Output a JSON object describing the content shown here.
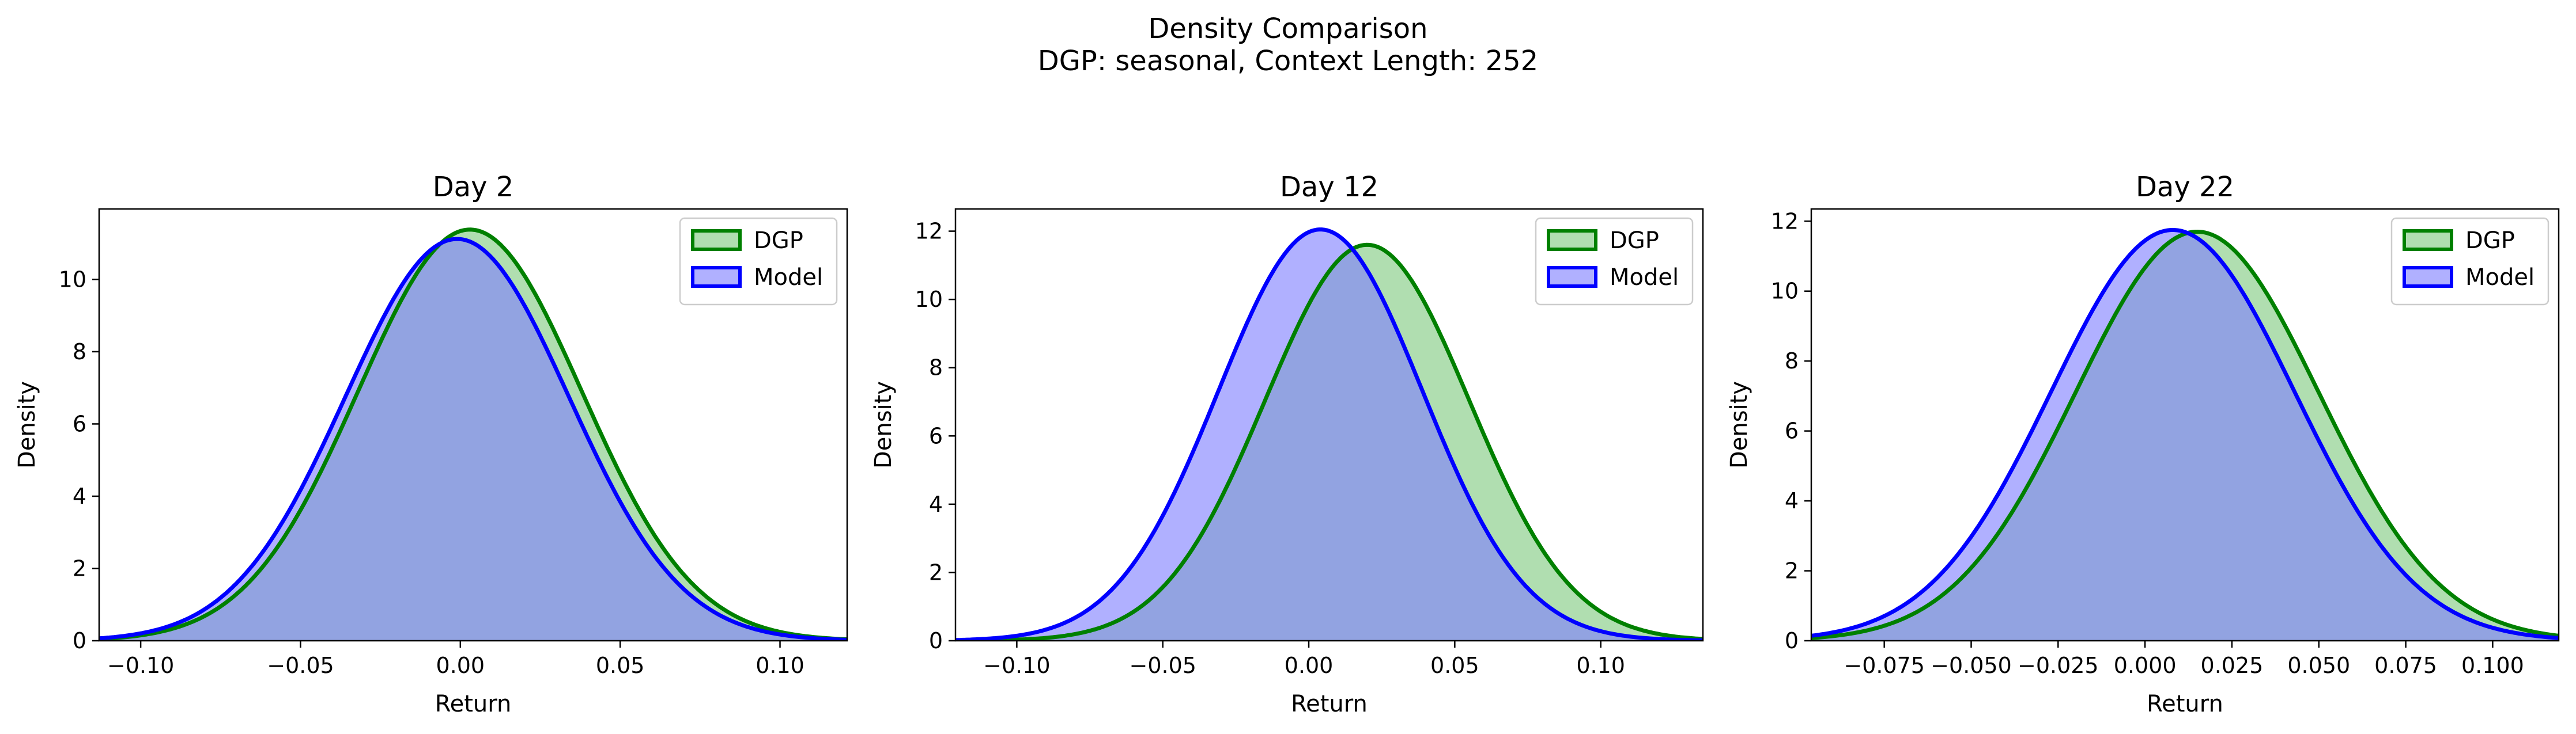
{
  "figure": {
    "title": "Density Comparison",
    "subtitle": "DGP: seasonal, Context Length: 252"
  },
  "colors": {
    "dgp_line": "#008000",
    "dgp_fill": "#7fc97f",
    "model_line": "#0000ff",
    "model_fill": "#7f7fff"
  },
  "chart_data": [
    {
      "type": "area",
      "title": "Day 2",
      "xlabel": "Return",
      "ylabel": "Density",
      "xlim": [
        -0.113,
        0.121
      ],
      "ylim": [
        0,
        11.95
      ],
      "xticks": [
        -0.1,
        -0.05,
        0.0,
        0.05,
        0.1
      ],
      "xtick_labels": [
        "−0.10",
        "−0.05",
        "0.00",
        "0.05",
        "0.10"
      ],
      "yticks": [
        0,
        2,
        4,
        6,
        8,
        10
      ],
      "legend": "top-right",
      "series": [
        {
          "name": "DGP",
          "kind": "normal",
          "mean": 0.003,
          "peak": 11.38
        },
        {
          "name": "Model",
          "kind": "normal",
          "mean": -0.001,
          "peak": 11.12,
          "tail_floor": 0.2
        }
      ]
    },
    {
      "type": "area",
      "title": "Day 12",
      "xlabel": "Return",
      "ylabel": "Density",
      "xlim": [
        -0.121,
        0.135
      ],
      "ylim": [
        0,
        12.65
      ],
      "xticks": [
        -0.1,
        -0.05,
        0.0,
        0.05,
        0.1
      ],
      "xtick_labels": [
        "−0.10",
        "−0.05",
        "0.00",
        "0.05",
        "0.10"
      ],
      "yticks": [
        0,
        2,
        4,
        6,
        8,
        10,
        12
      ],
      "legend": "top-right",
      "series": [
        {
          "name": "DGP",
          "kind": "normal",
          "mean": 0.02,
          "peak": 11.6
        },
        {
          "name": "Model",
          "kind": "normal",
          "mean": 0.004,
          "peak": 12.05,
          "tail_floor": 0.1
        }
      ]
    },
    {
      "type": "area",
      "title": "Day 22",
      "xlabel": "Return",
      "ylabel": "Density",
      "xlim": [
        -0.096,
        0.119
      ],
      "ylim": [
        0,
        12.35
      ],
      "xticks": [
        -0.075,
        -0.05,
        -0.025,
        0.0,
        0.025,
        0.05,
        0.075,
        0.1
      ],
      "xtick_labels": [
        "−0.075",
        "−0.050",
        "−0.025",
        "0.000",
        "0.025",
        "0.050",
        "0.075",
        "0.100"
      ],
      "yticks": [
        0,
        2,
        4,
        6,
        8,
        10,
        12
      ],
      "legend": "top-right",
      "series": [
        {
          "name": "DGP",
          "kind": "normal",
          "mean": 0.015,
          "peak": 11.7,
          "tail_floor": 0.3
        },
        {
          "name": "Model",
          "kind": "normal",
          "mean": 0.008,
          "peak": 11.75,
          "tail_floor": 0.25
        }
      ]
    }
  ]
}
